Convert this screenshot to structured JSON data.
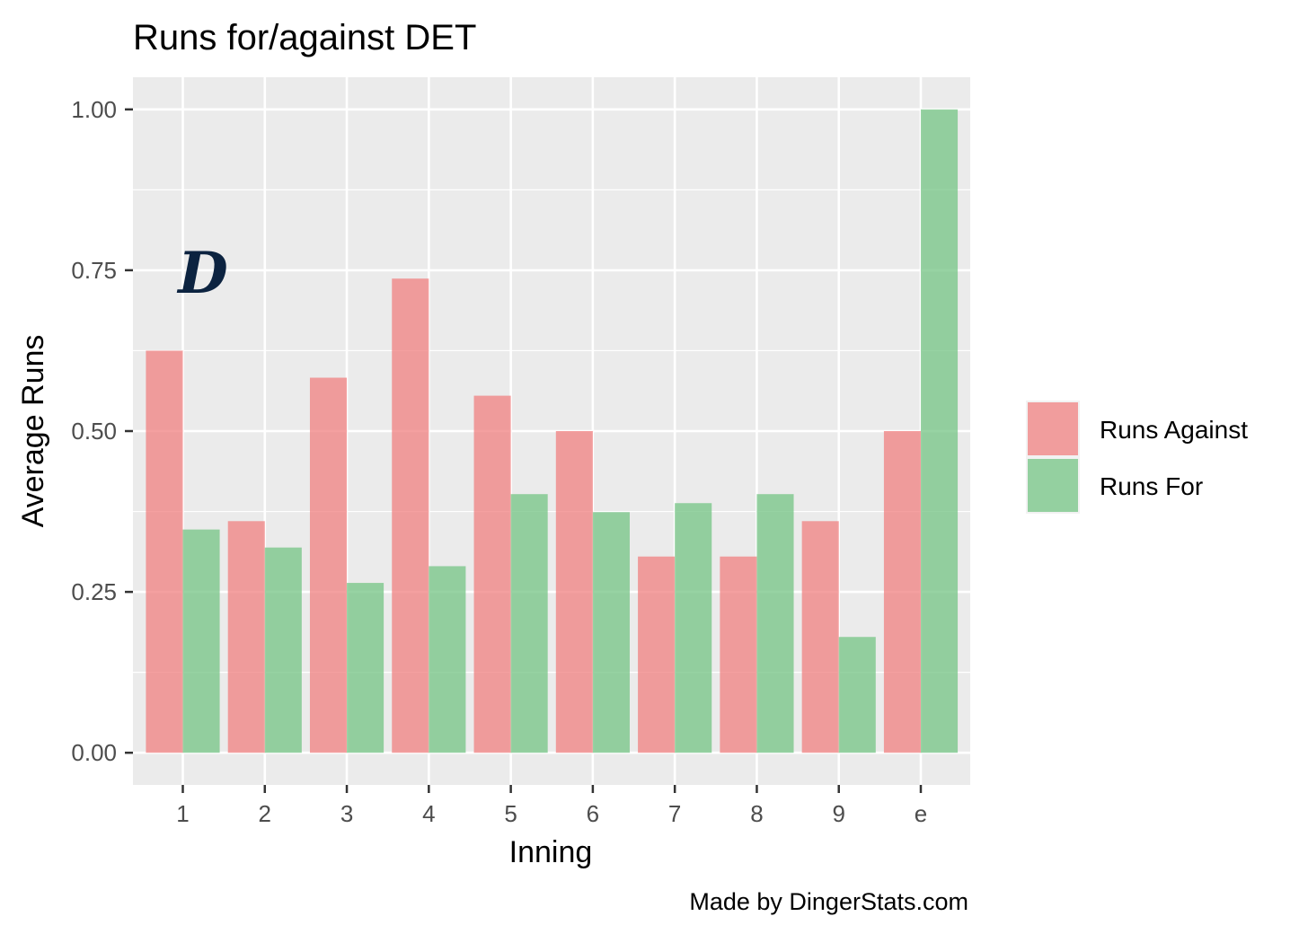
{
  "chart_data": {
    "type": "bar",
    "title": "Runs for/against DET",
    "xlabel": "Inning",
    "ylabel": "Average Runs",
    "caption": "Made by DingerStats.com",
    "categories": [
      "1",
      "2",
      "3",
      "4",
      "5",
      "6",
      "7",
      "8",
      "9",
      "e"
    ],
    "series": [
      {
        "name": "Runs Against",
        "color": "#f08080",
        "values": [
          0.625,
          0.36,
          0.583,
          0.737,
          0.555,
          0.5,
          0.305,
          0.305,
          0.36,
          0.5
        ]
      },
      {
        "name": "Runs For",
        "color": "#74c484",
        "values": [
          0.347,
          0.319,
          0.264,
          0.29,
          0.402,
          0.374,
          0.388,
          0.402,
          0.18,
          1.0
        ]
      }
    ],
    "ylim": [
      -0.05,
      1.05
    ],
    "yticks": [
      "0.00",
      "0.25",
      "0.50",
      "0.75",
      "1.00"
    ],
    "grid": true,
    "legend_position": "right",
    "logo": "detroit-tigers-d-logo"
  }
}
